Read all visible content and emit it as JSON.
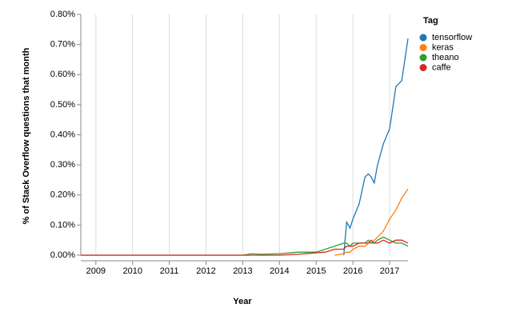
{
  "chart_data": {
    "type": "line",
    "xlabel": "Year",
    "ylabel": "% of Stack Overflow questions that month",
    "legend_title": "Tag",
    "legend": "right",
    "xgrid": true,
    "x": [
      2008.59,
      2013.0,
      2013.25,
      2013.5,
      2014.0,
      2014.5,
      2015.0,
      2015.25,
      2015.5,
      2015.75,
      2015.83,
      2015.92,
      2016.0,
      2016.17,
      2016.33,
      2016.42,
      2016.5,
      2016.58,
      2016.67,
      2016.83,
      2017.0,
      2017.17,
      2017.33,
      2017.5
    ],
    "series": [
      {
        "name": "tensorflow",
        "color": "#1f77b4",
        "values": [
          null,
          null,
          null,
          null,
          null,
          null,
          null,
          null,
          null,
          0.0,
          0.11,
          0.09,
          0.12,
          0.17,
          0.26,
          0.27,
          0.26,
          0.24,
          0.3,
          0.37,
          0.42,
          0.56,
          0.58,
          0.72
        ]
      },
      {
        "name": "keras",
        "color": "#ff7f0e",
        "values": [
          null,
          null,
          null,
          null,
          null,
          null,
          null,
          null,
          0.0,
          0.005,
          0.01,
          0.01,
          0.02,
          0.03,
          0.03,
          0.04,
          0.04,
          0.05,
          0.06,
          0.08,
          0.12,
          0.15,
          0.19,
          0.22
        ]
      },
      {
        "name": "theano",
        "color": "#2ca02c",
        "values": [
          0.0,
          0.0,
          0.005,
          0.003,
          0.005,
          0.01,
          0.01,
          0.02,
          0.03,
          0.04,
          0.04,
          0.03,
          0.04,
          0.04,
          0.04,
          0.05,
          0.04,
          0.04,
          0.05,
          0.06,
          0.05,
          0.04,
          0.04,
          0.03
        ]
      },
      {
        "name": "caffe",
        "color": "#d62728",
        "values": [
          0.0,
          0.0,
          0.0,
          0.0,
          0.0,
          0.003,
          0.008,
          0.01,
          0.02,
          0.02,
          0.03,
          0.03,
          0.03,
          0.04,
          0.04,
          0.04,
          0.05,
          0.04,
          0.04,
          0.05,
          0.04,
          0.05,
          0.05,
          0.04
        ]
      }
    ],
    "xlim": [
      2008.59,
      2017.5
    ],
    "xticks": [
      2009,
      2010,
      2011,
      2012,
      2013,
      2014,
      2015,
      2016,
      2017
    ],
    "ylim": [
      0,
      0.8
    ],
    "yticks": [
      {
        "value": 0,
        "label": "0.00%"
      },
      {
        "value": 0.1,
        "label": "0.10%"
      },
      {
        "value": 0.2,
        "label": "0.20%"
      },
      {
        "value": 0.3,
        "label": "0.30%"
      },
      {
        "value": 0.4,
        "label": "0.40%"
      },
      {
        "value": 0.5,
        "label": "0.50%"
      },
      {
        "value": 0.6,
        "label": "0.60%"
      },
      {
        "value": 0.7,
        "label": "0.70%"
      },
      {
        "value": 0.8,
        "label": "0.80%"
      }
    ]
  }
}
